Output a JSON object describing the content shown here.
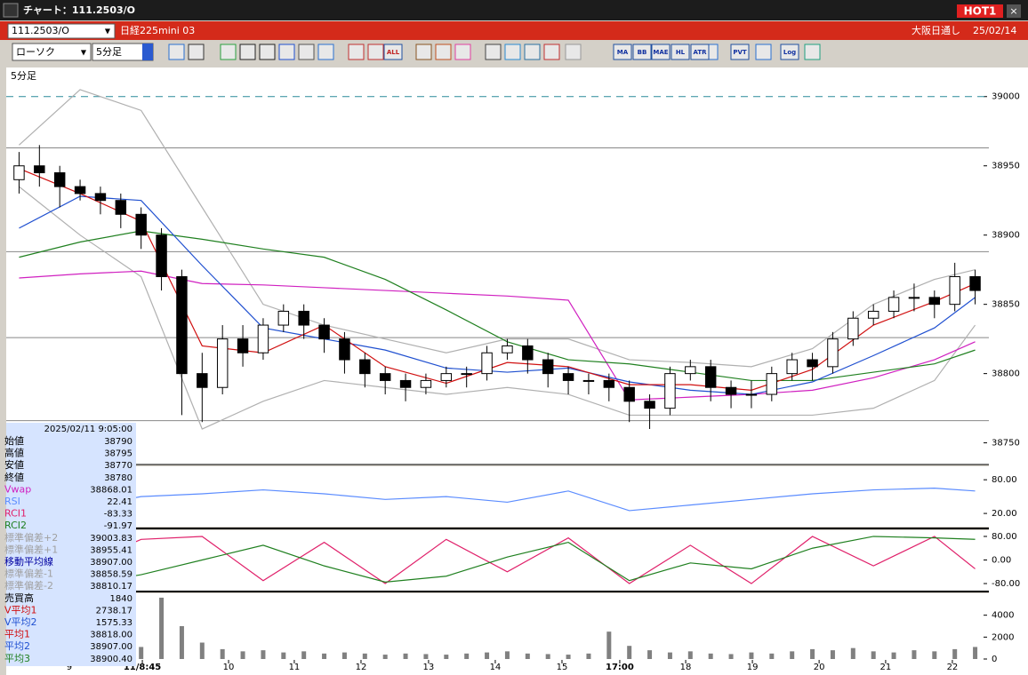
{
  "window": {
    "title": "チャート：111.2503/O",
    "hot": "HOT1"
  },
  "symbol_bar": {
    "code": "111.2503/O",
    "name": "日経225mini 03",
    "market": "大阪日通し",
    "date": "25/02/14"
  },
  "toolbar": {
    "chart_kind": "ローソク",
    "interval": "5分足",
    "buttons": [
      "ALL",
      "MA",
      "BB",
      "MAE",
      "HL",
      "ATR",
      "PVT",
      "Log"
    ]
  },
  "info": {
    "datetime": "2025/02/11 9:05:00",
    "rows": [
      {
        "label": "始値",
        "value": "38790",
        "color": "#000000"
      },
      {
        "label": "高値",
        "value": "38795",
        "color": "#000000"
      },
      {
        "label": "安値",
        "value": "38770",
        "color": "#000000"
      },
      {
        "label": "終値",
        "value": "38780",
        "color": "#000000"
      },
      {
        "label": "Vwap",
        "value": "38868.01",
        "color": "#d020c0"
      },
      {
        "label": "RSI",
        "value": "22.41",
        "color": "#5b8cff"
      },
      {
        "label": "RCI1",
        "value": "-83.33",
        "color": "#e0206a"
      },
      {
        "label": "RCI2",
        "value": "-91.97",
        "color": "#208020"
      },
      {
        "label": "標準偏差+2",
        "value": "39003.83",
        "color": "#a0a0a0"
      },
      {
        "label": "標準偏差+1",
        "value": "38955.41",
        "color": "#a0a0a0"
      },
      {
        "label": "移動平均線",
        "value": "38907.00",
        "color": "#0000a0"
      },
      {
        "label": "標準偏差-1",
        "value": "38858.59",
        "color": "#a0a0a0"
      },
      {
        "label": "標準偏差-2",
        "value": "38810.17",
        "color": "#a0a0a0"
      },
      {
        "label": "売買高",
        "value": "1840",
        "color": "#000000"
      },
      {
        "label": "V平均1",
        "value": "2738.17",
        "color": "#d01010"
      },
      {
        "label": "V平均2",
        "value": "1575.33",
        "color": "#2050d0"
      },
      {
        "label": "平均1",
        "value": "38818.00",
        "color": "#d01010"
      },
      {
        "label": "平均2",
        "value": "38907.00",
        "color": "#2050d0"
      },
      {
        "label": "平均3",
        "value": "38900.40",
        "color": "#208020"
      }
    ]
  },
  "chart_data": {
    "type": "candlestick",
    "label": "5分足",
    "ylim": [
      38735,
      39021
    ],
    "yticks": [
      38750,
      38800,
      38850,
      38900,
      38950,
      39000
    ],
    "xticks": [
      {
        "value": 2.47,
        "label": "9"
      },
      {
        "value": 6.06,
        "label": "11/8:45"
      },
      {
        "value": 10.3,
        "label": "10"
      },
      {
        "value": 13.53,
        "label": "11"
      },
      {
        "value": 16.81,
        "label": "12"
      },
      {
        "value": 20.13,
        "label": "13"
      },
      {
        "value": 23.41,
        "label": "14"
      },
      {
        "value": 26.69,
        "label": "15"
      },
      {
        "value": 29.53,
        "label": "17:00"
      },
      {
        "value": 32.77,
        "label": "18"
      },
      {
        "value": 36.05,
        "label": "19"
      },
      {
        "value": 39.33,
        "label": "20"
      },
      {
        "value": 42.6,
        "label": "21"
      },
      {
        "value": 45.88,
        "label": "22"
      }
    ],
    "levels": [
      38963,
      38888,
      38826,
      38766
    ],
    "dashed_level": 39000,
    "open": [
      38940,
      38950,
      38945,
      38935,
      38930,
      38925,
      38915,
      38900,
      38870,
      38800,
      38790,
      38825,
      38815,
      38835,
      38845,
      38835,
      38825,
      38810,
      38800,
      38795,
      38790,
      38795,
      38800,
      38800,
      38815,
      38820,
      38810,
      38800,
      38795,
      38795,
      38790,
      38780,
      38775,
      38800,
      38805,
      38790,
      38785,
      38785,
      38800,
      38810,
      38805,
      38825,
      38840,
      38845,
      38855,
      38855,
      38850,
      38870
    ],
    "high": [
      38960,
      38965,
      38950,
      38940,
      38935,
      38930,
      38920,
      38905,
      38875,
      38815,
      38835,
      38835,
      38840,
      38850,
      38850,
      38840,
      38830,
      38815,
      38805,
      38800,
      38800,
      38805,
      38805,
      38820,
      38825,
      38825,
      38815,
      38805,
      38800,
      38800,
      38795,
      38785,
      38805,
      38810,
      38810,
      38795,
      38795,
      38805,
      38815,
      38815,
      38830,
      38845,
      38850,
      38860,
      38865,
      38860,
      38880,
      38875
    ],
    "low": [
      38930,
      38935,
      38920,
      38925,
      38915,
      38905,
      38890,
      38860,
      38770,
      38765,
      38785,
      38805,
      38810,
      38830,
      38825,
      38815,
      38800,
      38790,
      38785,
      38780,
      38785,
      38790,
      38790,
      38795,
      38810,
      38800,
      38790,
      38785,
      38785,
      38780,
      38765,
      38760,
      38770,
      38795,
      38780,
      38775,
      38775,
      38780,
      38795,
      38795,
      38800,
      38820,
      38835,
      38840,
      38845,
      38840,
      38845,
      38850
    ],
    "close": [
      38950,
      38945,
      38935,
      38930,
      38925,
      38915,
      38900,
      38870,
      38800,
      38790,
      38825,
      38815,
      38835,
      38845,
      38835,
      38825,
      38810,
      38800,
      38795,
      38790,
      38795,
      38800,
      38800,
      38815,
      38820,
      38810,
      38800,
      38795,
      38795,
      38790,
      38780,
      38775,
      38800,
      38805,
      38790,
      38785,
      38785,
      38800,
      38810,
      38805,
      38825,
      38840,
      38845,
      38855,
      38855,
      38850,
      38870,
      38860
    ],
    "overlay_x": [
      0,
      3,
      6,
      9,
      12,
      15,
      18,
      21,
      24,
      27,
      30,
      33,
      36,
      39,
      42,
      45,
      47
    ],
    "series": [
      {
        "name": "標準偏差+2",
        "color": "#b0b0b0",
        "values": [
          38965,
          39005,
          38990,
          38920,
          38850,
          38835,
          38825,
          38815,
          38825,
          38825,
          38810,
          38808,
          38805,
          38818,
          38850,
          38868,
          38875
        ]
      },
      {
        "name": "標準偏差-2",
        "color": "#b0b0b0",
        "values": [
          38935,
          38900,
          38870,
          38760,
          38780,
          38795,
          38790,
          38785,
          38790,
          38785,
          38770,
          38770,
          38770,
          38770,
          38775,
          38795,
          38835
        ]
      },
      {
        "name": "Vwap",
        "color": "#d020c0",
        "values": [
          38869,
          38872,
          38874,
          38865,
          38864,
          38862,
          38860,
          38858,
          38856,
          38853,
          38781,
          38783,
          38785,
          38788,
          38797,
          38810,
          38823
        ]
      },
      {
        "name": "平均3",
        "color": "#208020",
        "values": [
          38884,
          38895,
          38903,
          38897,
          38890,
          38884,
          38868,
          38846,
          38823,
          38810,
          38807,
          38801,
          38795,
          38795,
          38801,
          38807,
          38817
        ]
      },
      {
        "name": "平均2",
        "color": "#2050d0",
        "values": [
          38905,
          38928,
          38925,
          38878,
          38833,
          38825,
          38817,
          38804,
          38801,
          38804,
          38794,
          38788,
          38785,
          38794,
          38813,
          38833,
          38855
        ]
      },
      {
        "name": "平均1",
        "color": "#d01010",
        "values": [
          38948,
          38930,
          38910,
          38820,
          38815,
          38835,
          38805,
          38793,
          38808,
          38805,
          38792,
          38792,
          38788,
          38803,
          38835,
          38852,
          38865
        ]
      }
    ]
  },
  "rsi": {
    "ylim": [
      -2,
      104
    ],
    "yticks": [
      {
        "value": 80,
        "label": "80.00"
      },
      {
        "value": 20,
        "label": "20.00"
      }
    ],
    "series": [
      {
        "name": "RSI",
        "color": "#5b8cff",
        "values": [
          42,
          30,
          50,
          55,
          62,
          55,
          45,
          50,
          40,
          60,
          25,
          35,
          45,
          55,
          62,
          65,
          60
        ]
      }
    ]
  },
  "osc": {
    "ylim": [
      -104,
      101
    ],
    "yticks": [
      {
        "value": 80,
        "label": "80.00"
      },
      {
        "value": 0,
        "label": "0.00"
      },
      {
        "value": -80,
        "label": "-80.00"
      }
    ],
    "series": [
      {
        "name": "RCI1",
        "color": "#e0206a",
        "values": [
          -60,
          -20,
          70,
          80,
          -70,
          60,
          -80,
          70,
          -40,
          75,
          -80,
          50,
          -80,
          80,
          -20,
          80,
          -30
        ]
      },
      {
        "name": "RCI2",
        "color": "#208020",
        "values": [
          -90,
          -85,
          -50,
          0,
          50,
          -20,
          -75,
          -55,
          10,
          60,
          -70,
          -10,
          -30,
          40,
          80,
          75,
          70
        ]
      }
    ]
  },
  "volume": {
    "ylim": [
      0,
      6000
    ],
    "yticks": [
      0,
      2000,
      4000
    ],
    "color": "#808080",
    "values": [
      1200,
      900,
      1000,
      800,
      700,
      900,
      1100,
      5600,
      3000,
      1500,
      900,
      700,
      800,
      600,
      700,
      500,
      600,
      500,
      400,
      500,
      450,
      400,
      500,
      600,
      700,
      500,
      450,
      400,
      500,
      2500,
      1200,
      800,
      600,
      700,
      500,
      450,
      600,
      500,
      700,
      900,
      800,
      1000,
      700,
      600,
      800,
      700,
      900,
      1100
    ]
  }
}
